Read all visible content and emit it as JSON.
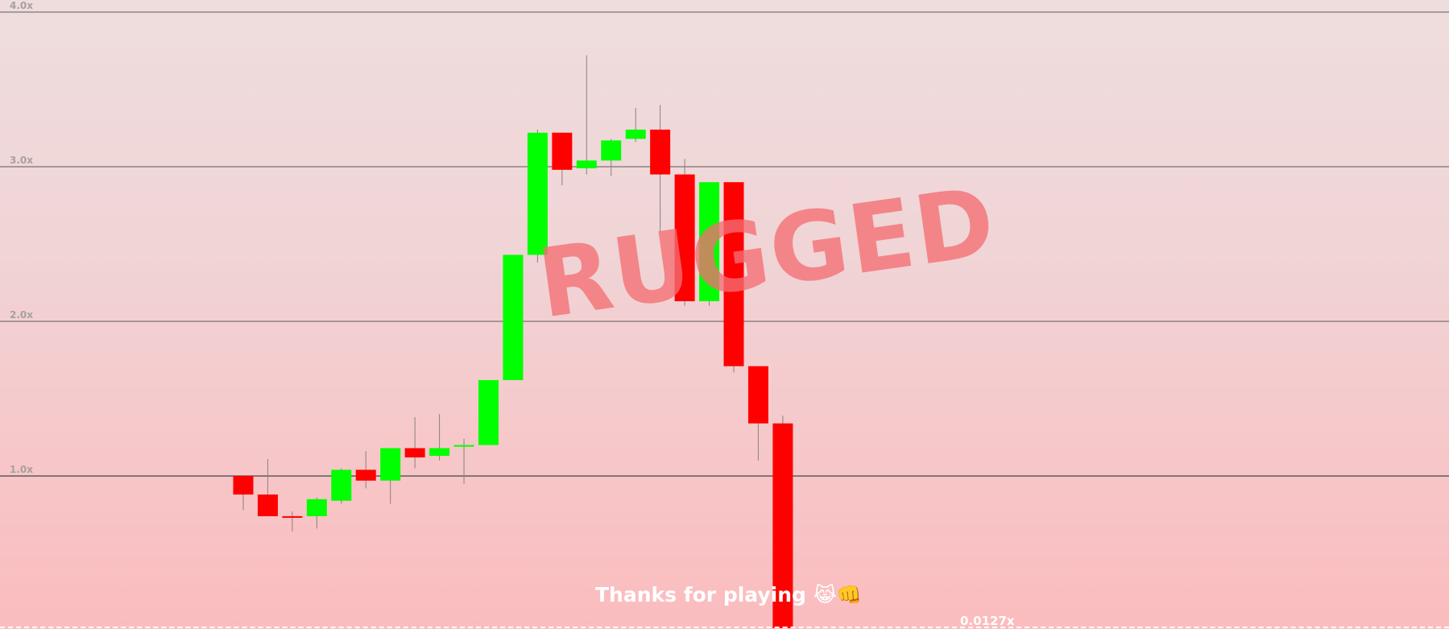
{
  "chart_data": {
    "type": "candlestick",
    "y_ticks": [
      "4.0x",
      "3.0x",
      "2.0x",
      "1.0x"
    ],
    "y_tick_values": [
      4.0,
      3.0,
      2.0,
      1.0
    ],
    "ylim": [
      0,
      4.0
    ],
    "grid": true,
    "overlay_text": "RUGGED",
    "message": "Thanks for playing 😹👊",
    "final_multiplier_label": "0.0127x",
    "up_color": "#00ff00",
    "down_color": "#ff0000",
    "candles": [
      {
        "open": 1.0,
        "high": 1.0,
        "low": 0.78,
        "close": 0.88
      },
      {
        "open": 0.88,
        "high": 1.11,
        "low": 0.74,
        "close": 0.74
      },
      {
        "open": 0.74,
        "high": 0.77,
        "low": 0.64,
        "close": 0.73
      },
      {
        "open": 0.74,
        "high": 0.86,
        "low": 0.66,
        "close": 0.85
      },
      {
        "open": 0.84,
        "high": 1.05,
        "low": 0.82,
        "close": 1.04
      },
      {
        "open": 1.04,
        "high": 1.16,
        "low": 0.92,
        "close": 0.97
      },
      {
        "open": 0.97,
        "high": 1.18,
        "low": 0.82,
        "close": 1.18
      },
      {
        "open": 1.18,
        "high": 1.38,
        "low": 1.05,
        "close": 1.12
      },
      {
        "open": 1.13,
        "high": 1.4,
        "low": 1.1,
        "close": 1.18
      },
      {
        "open": 1.19,
        "high": 1.24,
        "low": 0.95,
        "close": 1.2
      },
      {
        "open": 1.2,
        "high": 1.61,
        "low": 1.2,
        "close": 1.62
      },
      {
        "open": 1.62,
        "high": 2.4,
        "low": 1.62,
        "close": 2.43
      },
      {
        "open": 2.43,
        "high": 3.24,
        "low": 2.38,
        "close": 3.22
      },
      {
        "open": 3.22,
        "high": 3.22,
        "low": 2.88,
        "close": 2.98
      },
      {
        "open": 2.99,
        "high": 3.72,
        "low": 2.95,
        "close": 3.04
      },
      {
        "open": 3.04,
        "high": 3.18,
        "low": 2.94,
        "close": 3.17
      },
      {
        "open": 3.18,
        "high": 3.38,
        "low": 3.16,
        "close": 3.24
      },
      {
        "open": 3.24,
        "high": 3.4,
        "low": 2.58,
        "close": 2.95
      },
      {
        "open": 2.95,
        "high": 3.05,
        "low": 2.1,
        "close": 2.13
      },
      {
        "open": 2.13,
        "high": 2.9,
        "low": 2.1,
        "close": 2.9
      },
      {
        "open": 2.9,
        "high": 2.9,
        "low": 1.67,
        "close": 1.71
      },
      {
        "open": 1.71,
        "high": 1.71,
        "low": 1.1,
        "close": 1.34
      },
      {
        "open": 1.34,
        "high": 1.39,
        "low": 0.0127,
        "close": 0.0127
      }
    ]
  }
}
